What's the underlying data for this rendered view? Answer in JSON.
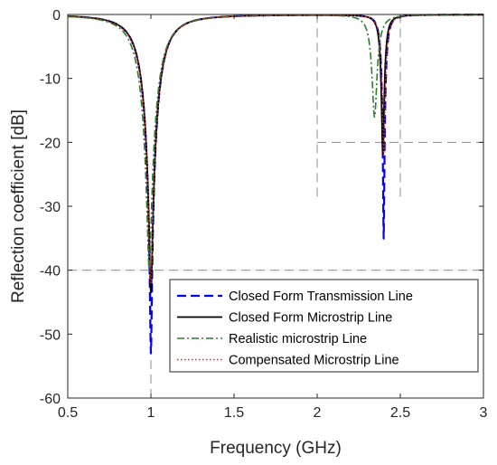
{
  "chart_data": {
    "type": "line",
    "xlabel": "Frequency (GHz)",
    "ylabel": "Reflection coefficient [dB]",
    "xlim": [
      0.5,
      3
    ],
    "ylim": [
      -60,
      0
    ],
    "xticks": [
      0.5,
      1,
      1.5,
      2,
      2.5,
      3
    ],
    "xtick_labels": [
      "0.5",
      "1",
      "1.5",
      "2",
      "2.5",
      "3"
    ],
    "yticks": [
      0,
      -10,
      -20,
      -30,
      -40,
      -50,
      -60
    ],
    "ytick_labels": [
      "0",
      "-10",
      "-20",
      "-30",
      "-40",
      "-50",
      "-60"
    ],
    "grid": false,
    "legend_position": "bottom-right",
    "reference_lines": {
      "vertical": [
        {
          "x": 1,
          "y_range": [
            -60,
            -40
          ]
        },
        {
          "x": 2,
          "y_range": [
            -28.5,
            0
          ]
        },
        {
          "x": 2.5,
          "y_range": [
            -28.5,
            0
          ]
        }
      ],
      "horizontal": [
        {
          "y": -20,
          "x_range": [
            2,
            3
          ]
        },
        {
          "y": -40,
          "x_range": [
            0.5,
            3
          ]
        }
      ]
    },
    "series": [
      {
        "name": "Closed Form Transmission Line",
        "color": "#0000ff",
        "style": "dashed",
        "dips": [
          {
            "f0": 1.0,
            "depth": -53,
            "bw": 0.09
          },
          {
            "f0": 2.4,
            "depth": -35,
            "bw": 0.02
          }
        ],
        "x": [
          0.5,
          0.6,
          0.7,
          0.8,
          0.9,
          0.95,
          1.0,
          1.05,
          1.1,
          1.2,
          1.5,
          2.0,
          2.3,
          2.38,
          2.4,
          2.42,
          2.5,
          3.0
        ],
        "y": [
          -3.6,
          -4.6,
          -6.0,
          -8.4,
          -14.4,
          -22.6,
          -53.0,
          -22.4,
          -14.2,
          -7.6,
          -2.3,
          -0.7,
          -0.5,
          -2.8,
          -35.0,
          -3.0,
          -0.3,
          -0.0
        ]
      },
      {
        "name": "Closed Form Microstrip Line",
        "color": "#000000",
        "style": "solid",
        "dips": [
          {
            "f0": 1.0,
            "depth": -43.5,
            "bw": 0.09
          },
          {
            "f0": 2.395,
            "depth": -22,
            "bw": 0.02
          }
        ],
        "x": [
          0.5,
          0.6,
          0.7,
          0.8,
          0.9,
          0.95,
          1.0,
          1.05,
          1.1,
          1.2,
          1.5,
          2.0,
          2.3,
          2.38,
          2.395,
          2.41,
          2.5,
          3.0
        ],
        "y": [
          -3.6,
          -4.6,
          -6.0,
          -8.4,
          -14.3,
          -22.0,
          -43.5,
          -21.8,
          -14.1,
          -7.6,
          -2.3,
          -0.7,
          -0.5,
          -5.4,
          -22.0,
          -5.2,
          -0.4,
          -0.0
        ]
      },
      {
        "name": "Realistic microstrip Line",
        "color": "#2e7d2e",
        "style": "dashdot",
        "dips": [
          {
            "f0": 0.99,
            "depth": -40,
            "bw": 0.095
          },
          {
            "f0": 2.345,
            "depth": -16,
            "bw": 0.03
          }
        ],
        "x": [
          0.5,
          0.6,
          0.7,
          0.8,
          0.9,
          0.95,
          0.99,
          1.05,
          1.1,
          1.2,
          1.5,
          2.0,
          2.3,
          2.33,
          2.345,
          2.36,
          2.4,
          2.5,
          3.0
        ],
        "y": [
          -3.8,
          -4.9,
          -6.5,
          -9.2,
          -15.8,
          -24.0,
          -40.0,
          -19.5,
          -13.0,
          -7.3,
          -2.4,
          -0.8,
          -3.0,
          -7.6,
          -16.0,
          -7.5,
          -2.6,
          -0.6,
          -0.0
        ]
      },
      {
        "name": "Compensated Microstrip Line",
        "color": "#d62728",
        "style": "dotted",
        "dips": [
          {
            "f0": 1.0,
            "depth": -42,
            "bw": 0.092
          },
          {
            "f0": 2.4,
            "depth": -22,
            "bw": 0.021
          }
        ],
        "x": [
          0.5,
          0.6,
          0.7,
          0.8,
          0.9,
          0.95,
          1.0,
          1.05,
          1.1,
          1.2,
          1.5,
          2.0,
          2.3,
          2.38,
          2.4,
          2.42,
          2.5,
          3.0
        ],
        "y": [
          -3.7,
          -4.7,
          -6.1,
          -8.6,
          -14.6,
          -22.2,
          -42.0,
          -22.0,
          -14.4,
          -7.7,
          -2.3,
          -0.7,
          -0.6,
          -4.6,
          -22.0,
          -4.8,
          -0.5,
          -0.0
        ]
      }
    ]
  }
}
